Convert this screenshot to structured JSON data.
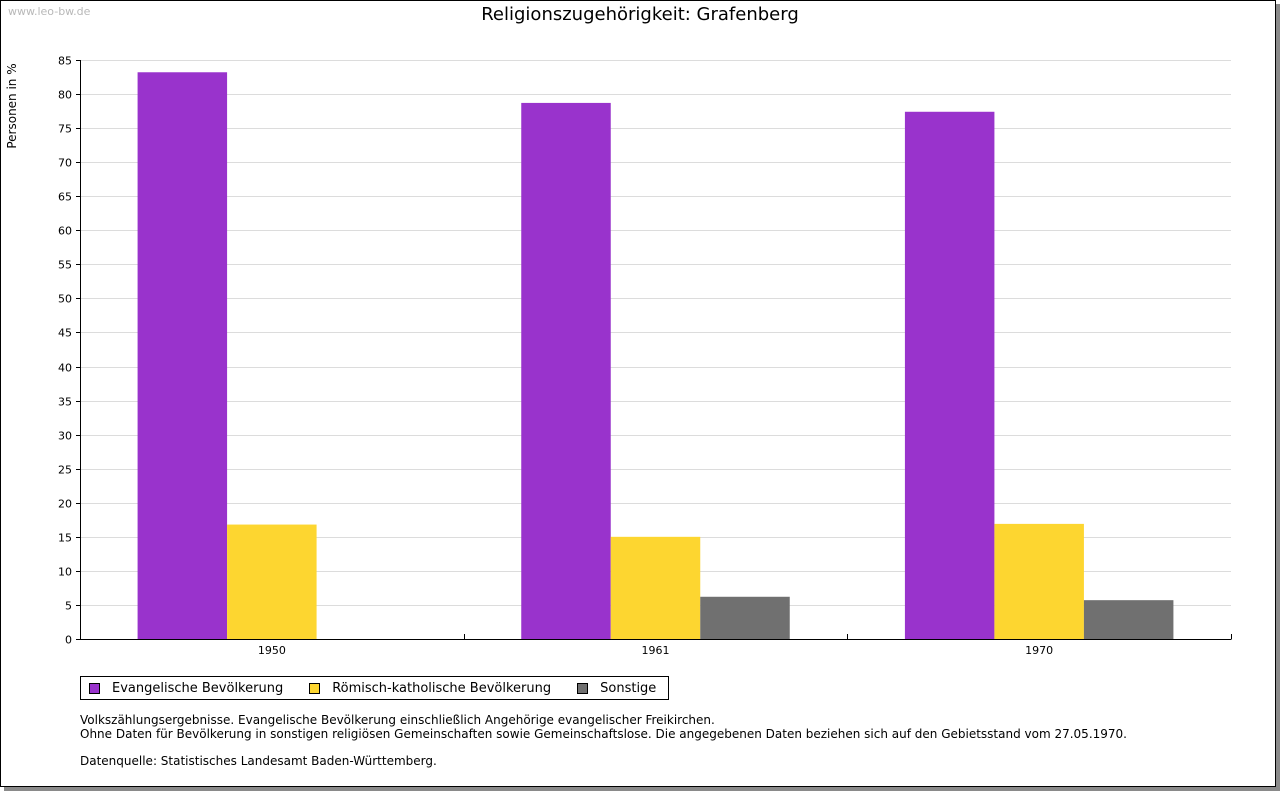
{
  "watermark": "www.leo-bw.de",
  "notes": {
    "line1": "Volkszählungsergebnisse. Evangelische Bevölkerung einschließlich Angehörige evangelischer Freikirchen.",
    "line2": "Ohne Daten für Bevölkerung in sonstigen religiösen Gemeinschaften sowie Gemeinschaftslose. Die angegebenen Daten beziehen sich auf den Gebietsstand vom 27.05.1970.",
    "source": "Datenquelle: Statistisches Landesamt Baden-Württemberg."
  },
  "chart_data": {
    "type": "bar",
    "title": "Religionszugehörigkeit: Grafenberg",
    "xlabel": "",
    "ylabel": "Personen in %",
    "ylim": [
      0,
      85
    ],
    "yticks": [
      0,
      5,
      10,
      15,
      20,
      25,
      30,
      35,
      40,
      45,
      50,
      55,
      60,
      65,
      70,
      75,
      80,
      85
    ],
    "grid": true,
    "legend_position": "bottom-left",
    "categories": [
      "1950",
      "1961",
      "1970"
    ],
    "series": [
      {
        "name": "Evangelische Bevölkerung",
        "color": "#9933cc",
        "values": [
          83.2,
          78.7,
          77.4
        ]
      },
      {
        "name": "Römisch-katholische Bevölkerung",
        "color": "#fdd630",
        "values": [
          16.8,
          15.0,
          16.9
        ]
      },
      {
        "name": "Sonstige",
        "color": "#707070",
        "values": [
          null,
          6.2,
          5.7
        ]
      }
    ]
  }
}
